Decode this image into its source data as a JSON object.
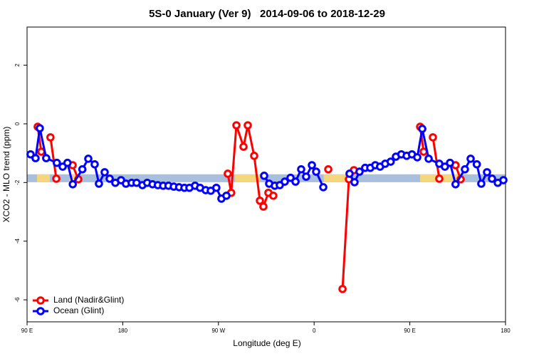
{
  "chart_data": {
    "type": "line",
    "title": "5S-0 January (Ver 9)   2014-09-06 to 2018-12-29",
    "xlabel": "Longitude (deg E)",
    "ylabel": "XCO2 - MLO trend (ppm)",
    "xlim": [
      90,
      540
    ],
    "ylim": [
      -6.75,
      3.3
    ],
    "xticks": [
      {
        "value": 90,
        "label": "90 E"
      },
      {
        "value": 180,
        "label": "180"
      },
      {
        "value": 270,
        "label": "90 W"
      },
      {
        "value": 360,
        "label": "0"
      },
      {
        "value": 450,
        "label": "90 E"
      },
      {
        "value": 540,
        "label": "180"
      }
    ],
    "yticks": [
      -6,
      -4,
      -2,
      0,
      2
    ],
    "legend": "bottom-left",
    "band": {
      "ylim": [
        -1.99,
        -1.72
      ],
      "color": "#a8bfdd",
      "land_color": "#f6d67c",
      "land": [
        [
          99.4,
          111.4
        ],
        [
          130,
          139.6
        ],
        [
          285.5,
          309
        ],
        [
          369,
          390.7
        ],
        [
          459.7,
          499.8
        ]
      ]
    },
    "series": [
      {
        "name": "Land (Nadir&Glint)",
        "color": "#ff0000",
        "x": [
          100,
          103.4,
          null,
          112,
          117.5,
          null,
          132.9,
          138.2,
          null,
          278.8,
          282,
          286.9,
          293.6,
          297.6,
          303.6,
          309,
          312.3,
          317,
          321.6,
          null,
          373.3,
          null,
          386.7,
          392.7,
          397.4,
          null,
          459.7,
          463,
          null,
          471.7,
          477.7,
          null,
          493,
          497.8
        ],
        "values": [
          -0.1,
          -0.95,
          null,
          -0.46,
          -1.87,
          null,
          -1.41,
          -1.89,
          null,
          -1.7,
          -2.35,
          -0.05,
          -0.78,
          -0.05,
          -1.09,
          -2.62,
          -2.82,
          -2.35,
          -2.45,
          null,
          -1.55,
          null,
          -5.63,
          -1.89,
          -1.58,
          null,
          -0.1,
          -0.95,
          null,
          -0.46,
          -1.87,
          null,
          -1.41,
          -1.89
        ]
      },
      {
        "name": "Ocean (Glint)",
        "color": "#0000ff",
        "x": [
          93.3,
          98,
          102,
          108,
          118,
          123.5,
          128,
          133,
          142,
          147.6,
          153.6,
          157.6,
          163,
          167.7,
          173,
          178.4,
          183,
          188.4,
          193,
          198.5,
          203,
          208,
          213,
          218,
          223,
          228,
          233,
          238,
          242.7,
          248,
          252.7,
          258,
          262.8,
          268,
          272.8,
          277.5,
          null,
          313,
          317.7,
          323,
          327.7,
          332.4,
          337.8,
          342.5,
          347.8,
          352.5,
          357.9,
          361.9,
          368.6,
          null,
          393.3,
          398,
          402.7,
          408,
          412.8,
          417.5,
          422,
          426.8,
          432,
          436.9,
          442,
          447,
          452,
          457,
          461.7,
          467.7,
          477.7,
          483,
          487.8,
          493,
          501.8,
          507.2,
          513,
          517.2,
          522.6,
          527.3,
          532.7,
          538
        ],
        "values": [
          -1.04,
          -1.17,
          -0.15,
          -1.17,
          -1.33,
          -1.46,
          -1.33,
          -2.06,
          -1.55,
          -1.19,
          -1.38,
          -2.04,
          -1.65,
          -1.87,
          -2.01,
          -1.92,
          -2.04,
          -2.01,
          -2.01,
          -2.09,
          -2.01,
          -2.06,
          -2.09,
          -2.11,
          -2.11,
          -2.14,
          -2.16,
          -2.18,
          -2.18,
          -2.11,
          -2.18,
          -2.26,
          -2.28,
          -2.18,
          -2.55,
          -2.45,
          null,
          -1.77,
          -2.04,
          -2.11,
          -2.09,
          -1.97,
          -1.84,
          -1.97,
          -1.55,
          -1.8,
          -1.41,
          -1.63,
          -2.16,
          null,
          -1.7,
          -1.99,
          -1.63,
          -1.5,
          -1.5,
          -1.41,
          -1.46,
          -1.36,
          -1.29,
          -1.12,
          -1.04,
          -1.09,
          -1.04,
          -1.14,
          -0.17,
          -1.19,
          -1.36,
          -1.46,
          -1.33,
          -2.06,
          -1.55,
          -1.19,
          -1.38,
          -2.04,
          -1.65,
          -1.87,
          -2.01,
          -1.92
        ]
      }
    ]
  }
}
